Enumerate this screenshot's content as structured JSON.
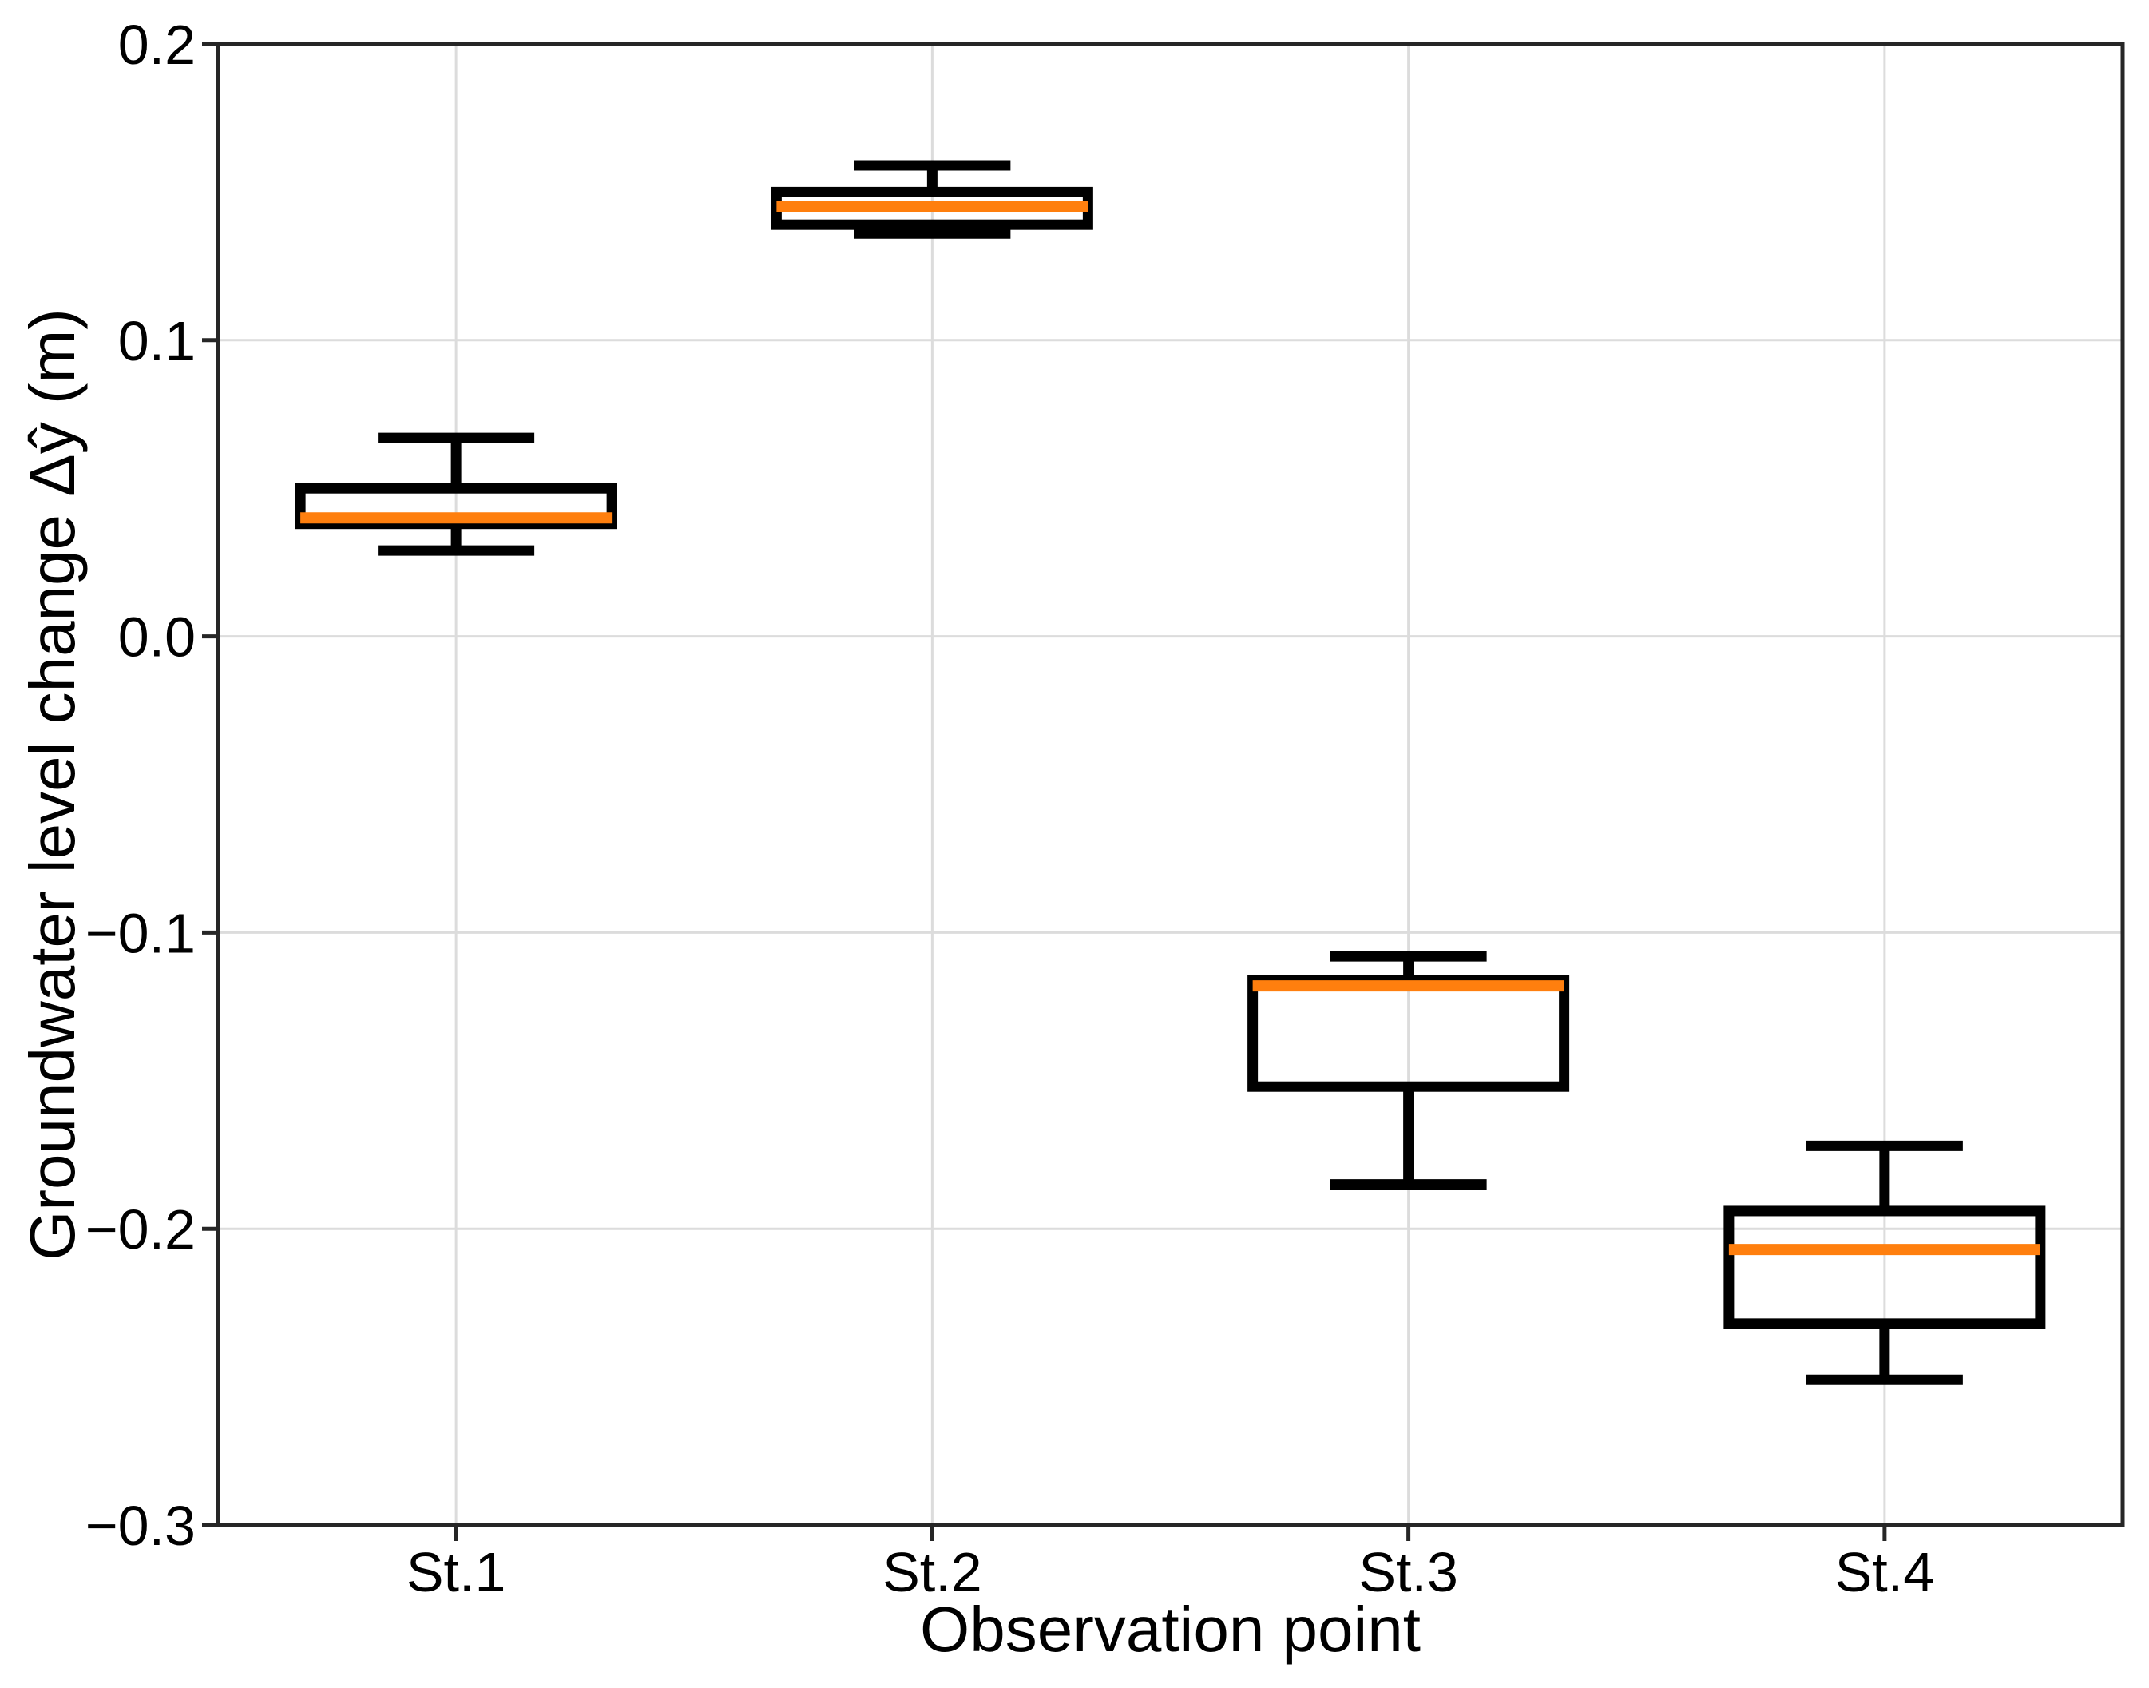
{
  "chart_data": {
    "type": "box",
    "title": "",
    "xlabel": "Observation point",
    "ylabel": "Groundwater level change Δŷ (m)",
    "categories": [
      "St.1",
      "St.2",
      "St.3",
      "St.4"
    ],
    "boxes": [
      {
        "category": "St.1",
        "whisker_low": 0.029,
        "q1": 0.038,
        "median": 0.04,
        "q3": 0.05,
        "whisker_high": 0.067
      },
      {
        "category": "St.2",
        "whisker_low": 0.136,
        "q1": 0.139,
        "median": 0.145,
        "q3": 0.15,
        "whisker_high": 0.159
      },
      {
        "category": "St.3",
        "whisker_low": -0.185,
        "q1": -0.152,
        "median": -0.118,
        "q3": -0.116,
        "whisker_high": -0.108
      },
      {
        "category": "St.4",
        "whisker_low": -0.251,
        "q1": -0.232,
        "median": -0.207,
        "q3": -0.194,
        "whisker_high": -0.172
      }
    ],
    "ylim": [
      -0.3,
      0.2
    ],
    "yticks": [
      0.2,
      0.1,
      0.0,
      -0.1,
      -0.2,
      -0.3
    ],
    "ytick_labels": [
      "0.2",
      "0.1",
      "0.0",
      "−0.1",
      "−0.2",
      "−0.3"
    ],
    "grid": true,
    "legend": false,
    "colors": {
      "median": "#FF7F0E",
      "box_edge": "#000000",
      "grid": "#DCDCDC",
      "spine": "#262626",
      "text": "#000000",
      "background": "#FFFFFF"
    }
  }
}
